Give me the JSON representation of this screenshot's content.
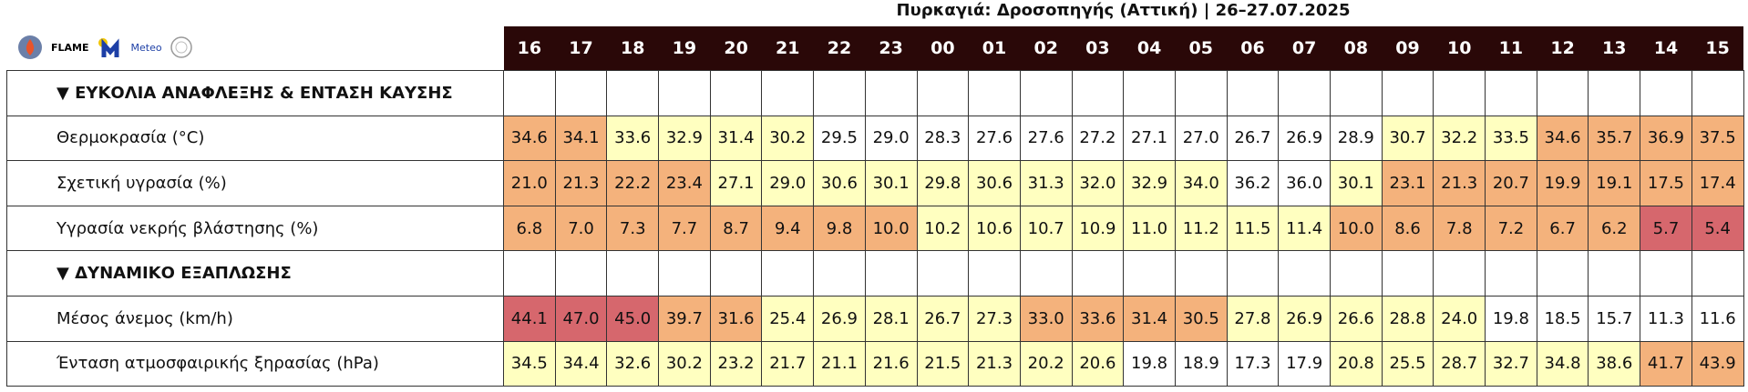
{
  "header": {
    "title": "Πυρκαγιά: Δροσοπηγής (Αττική) | 26–27.07.2025",
    "logos": [
      "FLAME",
      "Meteo"
    ]
  },
  "table": {
    "hours": [
      "16",
      "17",
      "18",
      "19",
      "20",
      "21",
      "22",
      "23",
      "00",
      "01",
      "02",
      "03",
      "04",
      "05",
      "06",
      "07",
      "08",
      "09",
      "10",
      "11",
      "12",
      "13",
      "14",
      "15"
    ],
    "header_color": "#2a0808",
    "sections": [
      {
        "title": "▼ ΕΥΚΟΛΙΑ ΑΝΑΦΛΕΞΗΣ & ΕΝΤΑΣΗ ΚΑΥΣΗΣ",
        "rows": [
          {
            "label": "Θερμοκρασία (°C)",
            "values": [
              "34.6",
              "34.1",
              "33.6",
              "32.9",
              "31.4",
              "30.2",
              "29.5",
              "29.0",
              "28.3",
              "27.6",
              "27.6",
              "27.2",
              "27.1",
              "27.0",
              "26.7",
              "26.9",
              "28.9",
              "30.7",
              "32.2",
              "33.5",
              "34.6",
              "35.7",
              "36.9",
              "37.5"
            ],
            "colors": [
              "#f4b27c",
              "#f4b27c",
              "#ffffc0",
              "#ffffc0",
              "#ffffc0",
              "#ffffc0",
              "#ffffff",
              "#ffffff",
              "#ffffff",
              "#ffffff",
              "#ffffff",
              "#ffffff",
              "#ffffff",
              "#ffffff",
              "#ffffff",
              "#ffffff",
              "#ffffff",
              "#ffffc0",
              "#ffffc0",
              "#ffffc0",
              "#f4b27c",
              "#f4b27c",
              "#f4b27c",
              "#f4b27c"
            ]
          },
          {
            "label": "Σχετική υγρασία (%)",
            "values": [
              "21.0",
              "21.3",
              "22.2",
              "23.4",
              "27.1",
              "29.0",
              "30.6",
              "30.1",
              "29.8",
              "30.6",
              "31.3",
              "32.0",
              "32.9",
              "34.0",
              "36.2",
              "36.0",
              "30.1",
              "23.1",
              "21.3",
              "20.7",
              "19.9",
              "19.1",
              "17.5",
              "17.4"
            ],
            "colors": [
              "#f4b27c",
              "#f4b27c",
              "#f4b27c",
              "#f4b27c",
              "#ffffc0",
              "#ffffc0",
              "#ffffc0",
              "#ffffc0",
              "#ffffc0",
              "#ffffc0",
              "#ffffc0",
              "#ffffc0",
              "#ffffc0",
              "#ffffc0",
              "#ffffff",
              "#ffffff",
              "#ffffc0",
              "#f4b27c",
              "#f4b27c",
              "#f4b27c",
              "#f4b27c",
              "#f4b27c",
              "#f4b27c",
              "#f4b27c"
            ]
          },
          {
            "label": "Υγρασία νεκρής βλάστησης (%)",
            "values": [
              "6.8",
              "7.0",
              "7.3",
              "7.7",
              "8.7",
              "9.4",
              "9.8",
              "10.0",
              "10.2",
              "10.6",
              "10.7",
              "10.9",
              "11.0",
              "11.2",
              "11.5",
              "11.4",
              "10.0",
              "8.6",
              "7.8",
              "7.2",
              "6.7",
              "6.2",
              "5.7",
              "5.4"
            ],
            "colors": [
              "#f4b27c",
              "#f4b27c",
              "#f4b27c",
              "#f4b27c",
              "#f4b27c",
              "#f4b27c",
              "#f4b27c",
              "#f4b27c",
              "#ffffc0",
              "#ffffc0",
              "#ffffc0",
              "#ffffc0",
              "#ffffc0",
              "#ffffc0",
              "#ffffc0",
              "#ffffc0",
              "#f4b27c",
              "#f4b27c",
              "#f4b27c",
              "#f4b27c",
              "#f4b27c",
              "#f4b27c",
              "#d6676d",
              "#d6676d"
            ]
          }
        ]
      },
      {
        "title": "▼ ΔΥΝΑΜΙΚΟ ΕΞΑΠΛΩΣΗΣ",
        "rows": [
          {
            "label": "Μέσος άνεμος (km/h)",
            "values": [
              "44.1",
              "47.0",
              "45.0",
              "39.7",
              "31.6",
              "25.4",
              "26.9",
              "28.1",
              "26.7",
              "27.3",
              "33.0",
              "33.6",
              "31.4",
              "30.5",
              "27.8",
              "26.9",
              "26.6",
              "28.8",
              "24.0",
              "19.8",
              "18.5",
              "15.7",
              "11.3",
              "11.6"
            ],
            "colors": [
              "#d6676d",
              "#d6676d",
              "#d6676d",
              "#f4b27c",
              "#f4b27c",
              "#ffffc0",
              "#ffffc0",
              "#ffffc0",
              "#ffffc0",
              "#ffffc0",
              "#f4b27c",
              "#f4b27c",
              "#f4b27c",
              "#f4b27c",
              "#ffffc0",
              "#ffffc0",
              "#ffffc0",
              "#ffffc0",
              "#ffffc0",
              "#ffffff",
              "#ffffff",
              "#ffffff",
              "#ffffff",
              "#ffffff"
            ]
          },
          {
            "label": "Ένταση ατμοσφαιρικής ξηρασίας (hPa)",
            "values": [
              "34.5",
              "34.4",
              "32.6",
              "30.2",
              "23.2",
              "21.7",
              "21.1",
              "21.6",
              "21.5",
              "21.3",
              "20.2",
              "20.6",
              "19.8",
              "18.9",
              "17.3",
              "17.9",
              "20.8",
              "25.5",
              "28.7",
              "32.7",
              "34.8",
              "38.6",
              "41.7",
              "43.9"
            ],
            "colors": [
              "#ffffc0",
              "#ffffc0",
              "#ffffc0",
              "#ffffc0",
              "#ffffc0",
              "#ffffc0",
              "#ffffc0",
              "#ffffc0",
              "#ffffc0",
              "#ffffc0",
              "#ffffc0",
              "#ffffc0",
              "#ffffff",
              "#ffffff",
              "#ffffff",
              "#ffffff",
              "#ffffc0",
              "#ffffc0",
              "#ffffc0",
              "#ffffc0",
              "#ffffc0",
              "#ffffc0",
              "#f4b27c",
              "#f4b27c"
            ]
          }
        ]
      }
    ]
  }
}
